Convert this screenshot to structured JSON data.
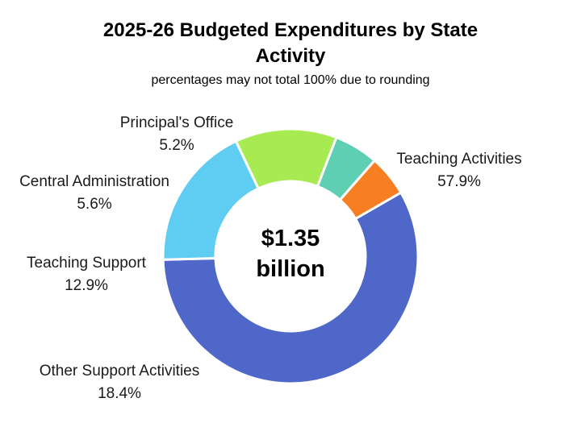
{
  "chart_data": {
    "type": "pie",
    "donut": true,
    "title_lines": [
      "2025-26 Budgeted Expenditures by State",
      "Activity"
    ],
    "subtitle": "percentages may not total 100% due to rounding",
    "center_label_lines": [
      "$1.35",
      "billion"
    ],
    "start_angle_deg": -30,
    "direction": "clockwise",
    "slices": [
      {
        "name": "Teaching Activities",
        "value": 57.9,
        "value_label": "57.9%",
        "color": "#4f67c9"
      },
      {
        "name": "Other Support Activities",
        "value": 18.4,
        "value_label": "18.4%",
        "color": "#5fccf2"
      },
      {
        "name": "Teaching Support",
        "value": 12.9,
        "value_label": "12.9%",
        "color": "#a8ea52"
      },
      {
        "name": "Central Administration",
        "value": 5.6,
        "value_label": "5.6%",
        "color": "#5fcfb4"
      },
      {
        "name": "Principal's Office",
        "value": 5.2,
        "value_label": "5.2%",
        "color": "#f77f22"
      }
    ]
  }
}
